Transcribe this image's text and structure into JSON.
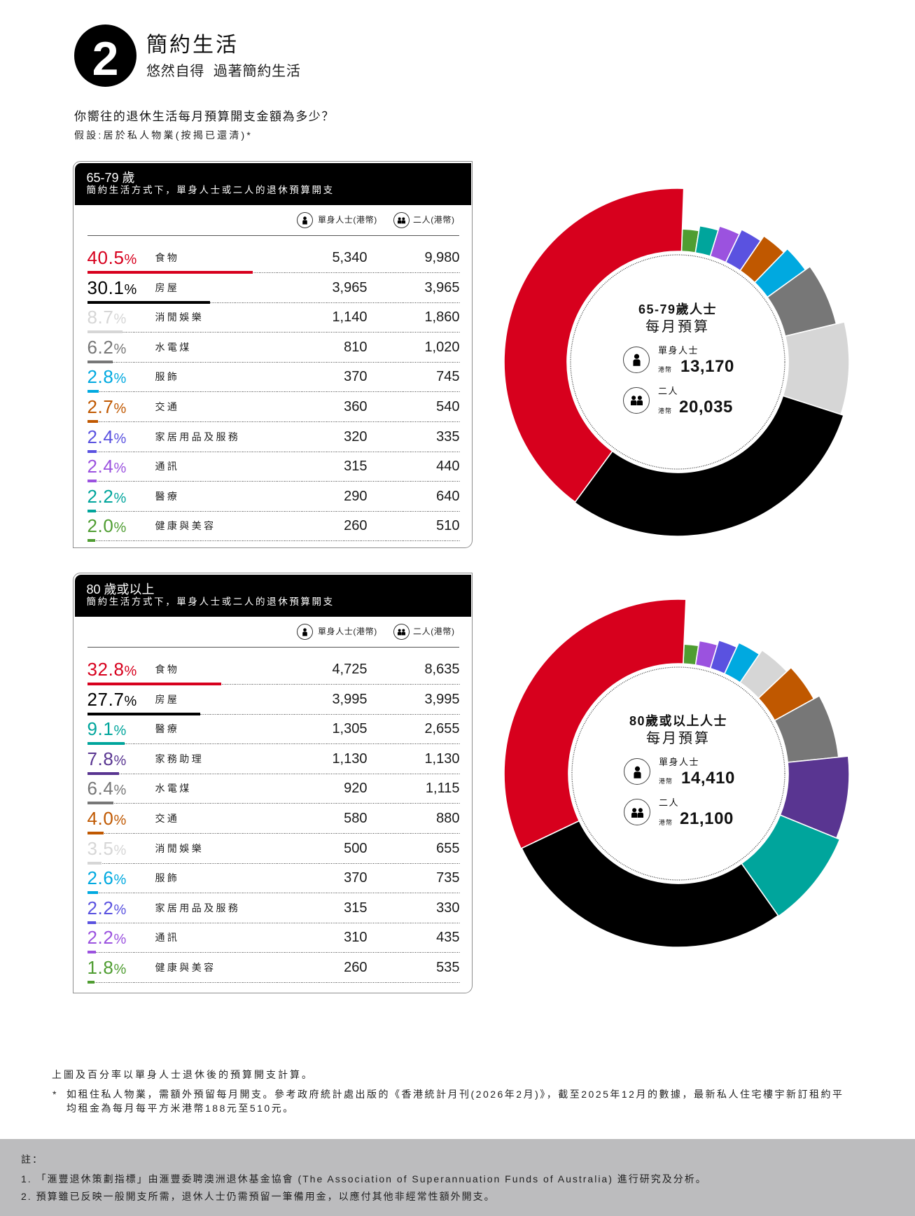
{
  "header": {
    "badge_number": "2",
    "title": "簡約生活",
    "subtitle": "悠然自得  過著簡約生活"
  },
  "intro": {
    "question": "你嚮往的退休生活每月預算開支金額為多少？",
    "assumption": "假設:居於私人物業(按揭已還清)*"
  },
  "units": {
    "percent": "%"
  },
  "column_headers": {
    "single": "單身人士(港幣)",
    "couple": "二人(港幣)",
    "single_icon": "single-person-icon",
    "couple_icon": "two-persons-icon"
  },
  "tables": [
    {
      "title": "65-79 歲",
      "subtitle": "簡約生活方式下，單身人士或二人的退休預算開支",
      "rows": [
        {
          "pct": "40.5",
          "label": "食物",
          "single": "5,340",
          "couple": "9,980",
          "color": "#d7001d"
        },
        {
          "pct": "30.1",
          "label": "房屋",
          "single": "3,965",
          "couple": "3,965",
          "color": "#000000"
        },
        {
          "pct": "8.7",
          "label": "消閒娛樂",
          "single": "1,140",
          "couple": "1,860",
          "color": "#d6d6d6"
        },
        {
          "pct": "6.2",
          "label": "水電煤",
          "single": "810",
          "couple": "1,020",
          "color": "#777777"
        },
        {
          "pct": "2.8",
          "label": "服飾",
          "single": "370",
          "couple": "745",
          "color": "#00a9e0"
        },
        {
          "pct": "2.7",
          "label": "交通",
          "single": "360",
          "couple": "540",
          "color": "#c05800"
        },
        {
          "pct": "2.4",
          "label": "家居用品及服務",
          "single": "320",
          "couple": "335",
          "color": "#5a52e0"
        },
        {
          "pct": "2.4",
          "label": "通訊",
          "single": "315",
          "couple": "440",
          "color": "#9b52df"
        },
        {
          "pct": "2.2",
          "label": "醫療",
          "single": "290",
          "couple": "640",
          "color": "#00a59c"
        },
        {
          "pct": "2.0",
          "label": "健康與美容",
          "single": "260",
          "couple": "510",
          "color": "#4f9d31"
        }
      ]
    },
    {
      "title": "80 歲或以上",
      "subtitle": "簡約生活方式下，單身人士或二人的退休預算開支",
      "rows": [
        {
          "pct": "32.8",
          "label": "食物",
          "single": "4,725",
          "couple": "8,635",
          "color": "#d7001d"
        },
        {
          "pct": "27.7",
          "label": "房屋",
          "single": "3,995",
          "couple": "3,995",
          "color": "#000000"
        },
        {
          "pct": "9.1",
          "label": "醫療",
          "single": "1,305",
          "couple": "2,655",
          "color": "#00a59c"
        },
        {
          "pct": "7.8",
          "label": "家務助理",
          "single": "1,130",
          "couple": "1,130",
          "color": "#593591"
        },
        {
          "pct": "6.4",
          "label": "水電煤",
          "single": "920",
          "couple": "1,115",
          "color": "#777777"
        },
        {
          "pct": "4.0",
          "label": "交通",
          "single": "580",
          "couple": "880",
          "color": "#c05800"
        },
        {
          "pct": "3.5",
          "label": "消閒娛樂",
          "single": "500",
          "couple": "655",
          "color": "#d6d6d6"
        },
        {
          "pct": "2.6",
          "label": "服飾",
          "single": "370",
          "couple": "735",
          "color": "#00a9e0"
        },
        {
          "pct": "2.2",
          "label": "家居用品及服務",
          "single": "315",
          "couple": "330",
          "color": "#5a52e0"
        },
        {
          "pct": "2.2",
          "label": "通訊",
          "single": "310",
          "couple": "435",
          "color": "#9b52df"
        },
        {
          "pct": "1.8",
          "label": "健康與美容",
          "single": "260",
          "couple": "535",
          "color": "#4f9d31"
        }
      ]
    }
  ],
  "chart_data": [
    {
      "type": "pie",
      "style": "donut with variable outer radius (rose)",
      "title": "65-79歲人士 每月預算",
      "direction": "clockwise from 12 o'clock",
      "unit": "%",
      "categories": [
        "健康與美容",
        "醫療",
        "通訊",
        "家居用品及服務",
        "交通",
        "服飾",
        "水電煤",
        "消閒娛樂",
        "房屋",
        "食物"
      ],
      "values": [
        2.0,
        2.2,
        2.4,
        2.4,
        2.7,
        2.8,
        6.2,
        8.7,
        30.1,
        40.5
      ],
      "colors": [
        "#4f9d31",
        "#00a59c",
        "#9b52df",
        "#5a52e0",
        "#c05800",
        "#00a9e0",
        "#777777",
        "#d6d6d6",
        "#000000",
        "#d7001d"
      ],
      "outer_radii": [
        190,
        197,
        203,
        210,
        218,
        225,
        233,
        245,
        249,
        248
      ],
      "inner_radius": 158,
      "ring_radius": 153,
      "start_angle_deg": 2,
      "legend": "none (values listed in adjacent table)",
      "center": {
        "title": "65-79歲人士",
        "subtitle": "每月預算",
        "single_label": "單身人士",
        "couple_label": "二人",
        "currency": "港幣",
        "single_value": "13,170",
        "couple_value": "20,035"
      }
    },
    {
      "type": "pie",
      "style": "donut with variable outer radius (rose)",
      "title": "80歲或以上人士 每月預算",
      "direction": "clockwise from 12 o'clock",
      "unit": "%",
      "categories": [
        "健康與美容",
        "通訊",
        "家居用品及服務",
        "服飾",
        "消閒娛樂",
        "交通",
        "水電煤",
        "家務助理",
        "醫療",
        "房屋",
        "食物"
      ],
      "values": [
        1.8,
        2.2,
        2.2,
        2.6,
        3.5,
        4.0,
        6.4,
        7.8,
        9.1,
        27.7,
        32.8
      ],
      "colors": [
        "#4f9d31",
        "#9b52df",
        "#5a52e0",
        "#00a9e0",
        "#d6d6d6",
        "#c05800",
        "#777777",
        "#593591",
        "#00a59c",
        "#000000",
        "#d7001d"
      ],
      "outer_radii": [
        185,
        192,
        199,
        206,
        213,
        221,
        230,
        244,
        249,
        248,
        249
      ],
      "inner_radius": 157,
      "ring_radius": 152,
      "start_angle_deg": 2.5,
      "legend": "none (values listed in adjacent table)",
      "center": {
        "title": "80歲或以上人士",
        "subtitle": "每月預算",
        "single_label": "單身人士",
        "couple_label": "二人",
        "currency": "港幣",
        "single_value": "14,410",
        "couple_value": "21,100"
      }
    }
  ],
  "notes": {
    "basis": "上圖及百分率以單身人士退休後的預算開支計算。",
    "asterisk_mark": "*",
    "asterisk_line1": "如租住私人物業，需額外預留每月開支。參考政府統計處出版的《香港統計月刊(2026年2月)》，截至2025年12月的數據，最新私人住宅樓宇新訂租約平",
    "asterisk_line2": "均租金為每月每平方米港幣188元至510元。"
  },
  "footer": {
    "label": "註：",
    "items": [
      "1. 「滙豐退休策劃指標」由滙豐委聘澳洲退休基金協會 (The Association of Superannuation Funds of Australia) 進行研究及分析。",
      "2. 預算雖已反映一般開支所需，退休人士仍需預留一筆備用金，以應付其他非經常性額外開支。"
    ]
  }
}
